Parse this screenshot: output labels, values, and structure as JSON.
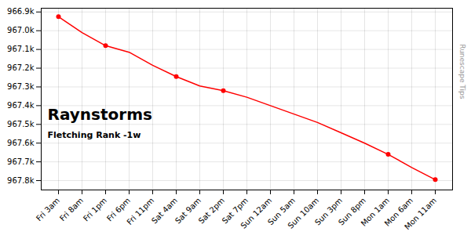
{
  "chart_data": {
    "type": "line",
    "title": "Raynstorms",
    "subtitle": "Fletching Rank -1w",
    "annotations": [
      "Runescape Tips"
    ],
    "categories": [
      "Fri 3am",
      "Fri 8am",
      "Fri 1pm",
      "Fri 6pm",
      "Fri 11pm",
      "Sat 4am",
      "Sat 9am",
      "Sat 2pm",
      "Sat 7pm",
      "Sun 12am",
      "Sun 5am",
      "Sun 10am",
      "Sun 3pm",
      "Sun 8pm",
      "Mon 1am",
      "Mon 6am",
      "Mon 11am"
    ],
    "values": [
      966925,
      967010,
      967080,
      967115,
      967185,
      967245,
      967295,
      967320,
      967355,
      967400,
      967445,
      967490,
      967545,
      967600,
      967660,
      967730,
      967795
    ],
    "color": "#ff0000",
    "marker": "circle",
    "marker_indices": [
      0,
      2,
      5,
      7,
      14,
      16
    ],
    "ylim": [
      967850,
      966880
    ],
    "yticks": [
      {
        "value": 966900,
        "label": "966.9k"
      },
      {
        "value": 967000,
        "label": "967.0k"
      },
      {
        "value": 967100,
        "label": "967.1k"
      },
      {
        "value": 967200,
        "label": "967.2k"
      },
      {
        "value": 967300,
        "label": "967.3k"
      },
      {
        "value": 967400,
        "label": "967.4k"
      },
      {
        "value": 967500,
        "label": "967.5k"
      },
      {
        "value": 967600,
        "label": "967.6k"
      },
      {
        "value": 967700,
        "label": "967.7k"
      },
      {
        "value": 967800,
        "label": "967.8k"
      }
    ],
    "grid": true
  }
}
